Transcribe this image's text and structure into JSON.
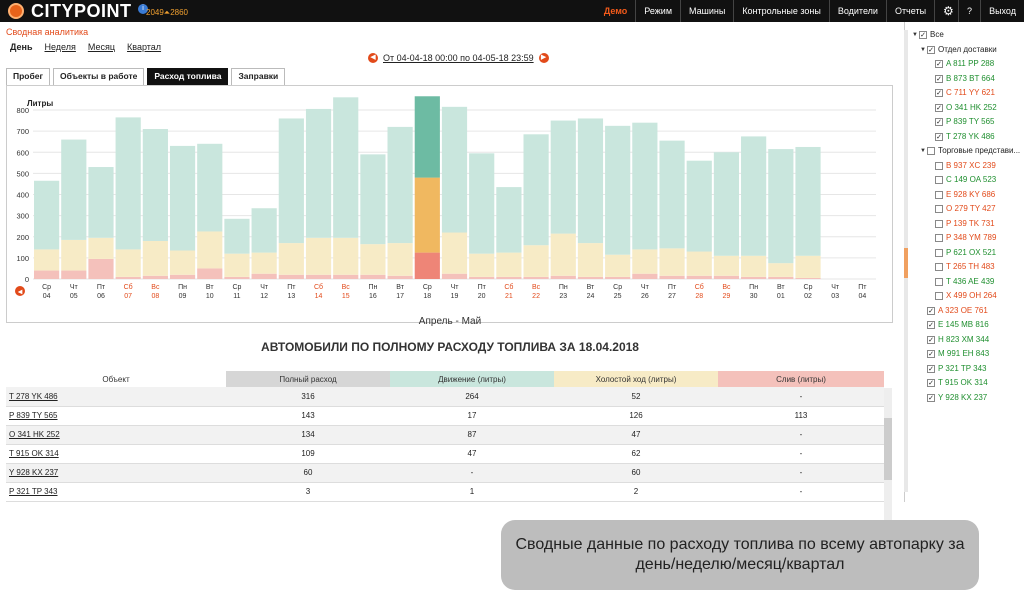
{
  "app": {
    "brand": "CITYPOINT",
    "info_badge": "i",
    "counter": "2049⏶2860"
  },
  "nav": [
    "Демо",
    "Режим",
    "Машины",
    "Контрольные зоны",
    "Водители",
    "Отчеты",
    "⚙",
    "?",
    "Выход"
  ],
  "page": {
    "title": "Сводная аналитика"
  },
  "periods": [
    "День",
    "Неделя",
    "Месяц",
    "Квартал"
  ],
  "date_range": "От 04-04-18 00:00 по 04-05-18 23:59",
  "tabs": [
    "Пробег",
    "Объекты в работе",
    "Расход топлива",
    "Заправки"
  ],
  "chart_data": {
    "type": "bar",
    "ylabel": "Литры",
    "ylim": [
      0,
      800
    ],
    "yticks": [
      0,
      100,
      200,
      300,
      400,
      500,
      600,
      700,
      800
    ],
    "xlabel": "Апрель - Май",
    "categories": [
      [
        "Ср",
        "04"
      ],
      [
        "Чт",
        "05"
      ],
      [
        "Пт",
        "06"
      ],
      [
        "Сб",
        "07"
      ],
      [
        "Вс",
        "08"
      ],
      [
        "Пн",
        "09"
      ],
      [
        "Вт",
        "10"
      ],
      [
        "Ср",
        "11"
      ],
      [
        "Чт",
        "12"
      ],
      [
        "Пт",
        "13"
      ],
      [
        "Сб",
        "14"
      ],
      [
        "Вс",
        "15"
      ],
      [
        "Пн",
        "16"
      ],
      [
        "Вт",
        "17"
      ],
      [
        "Ср",
        "18"
      ],
      [
        "Чт",
        "19"
      ],
      [
        "Пт",
        "20"
      ],
      [
        "Сб",
        "21"
      ],
      [
        "Вс",
        "22"
      ],
      [
        "Пн",
        "23"
      ],
      [
        "Вт",
        "24"
      ],
      [
        "Ср",
        "25"
      ],
      [
        "Чт",
        "26"
      ],
      [
        "Пт",
        "27"
      ],
      [
        "Сб",
        "28"
      ],
      [
        "Вс",
        "29"
      ],
      [
        "Пн",
        "30"
      ],
      [
        "Вт",
        "01"
      ],
      [
        "Ср",
        "02"
      ],
      [
        "Чт",
        "03"
      ],
      [
        "Пт",
        "04"
      ]
    ],
    "weekend_indices": [
      3,
      4,
      10,
      11,
      17,
      18,
      24,
      25
    ],
    "highlight_index": 14,
    "series": [
      {
        "values": [
          40,
          40,
          95,
          10,
          15,
          20,
          50,
          10,
          25,
          20,
          20,
          20,
          20,
          15,
          125,
          25,
          10,
          10,
          10,
          15,
          10,
          10,
          25,
          15,
          15,
          15,
          10,
          10,
          5,
          0,
          0
        ]
      },
      {
        "values": [
          100,
          145,
          100,
          130,
          165,
          115,
          175,
          110,
          100,
          150,
          175,
          175,
          145,
          155,
          355,
          195,
          110,
          115,
          150,
          200,
          160,
          105,
          115,
          130,
          115,
          95,
          100,
          65,
          105,
          0,
          0
        ]
      },
      {
        "values": [
          325,
          475,
          335,
          625,
          530,
          495,
          415,
          165,
          210,
          590,
          610,
          665,
          425,
          550,
          385,
          595,
          475,
          310,
          525,
          535,
          590,
          610,
          600,
          510,
          430,
          490,
          565,
          540,
          515,
          0,
          0
        ]
      }
    ],
    "colors": {
      "drain": "#f4c1bb",
      "idle": "#f7ebc6",
      "move": "#c9e6dd",
      "drain_hl": "#ee8577",
      "idle_hl": "#f0b860",
      "move_hl": "#6dbba3",
      "weekend_label": "#e24a1a"
    }
  },
  "table": {
    "title": "АВТОМОБИЛИ ПО ПОЛНОМУ РАСХОДУ ТОПЛИВА ЗА 18.04.2018",
    "columns": [
      "Объект",
      "Полный расход",
      "Движение (литры)",
      "Холостой ход (литры)",
      "Слив (литры)"
    ],
    "rows": [
      [
        "T 278 YK 486",
        "316",
        "264",
        "52",
        "-"
      ],
      [
        "P 839 TY 565",
        "143",
        "17",
        "126",
        "113"
      ],
      [
        "O 341 HK 252",
        "134",
        "87",
        "47",
        "-"
      ],
      [
        "T 915 OK 314",
        "109",
        "47",
        "62",
        "-"
      ],
      [
        "Y 928 KX 237",
        "60",
        "-",
        "60",
        "-"
      ],
      [
        "P 321 TP 343",
        "3",
        "1",
        "2",
        "-"
      ]
    ]
  },
  "caption": "Сводные данные по расходу топлива по всему автопарку за день/неделю/месяц/квартал",
  "sidebar": {
    "items": [
      {
        "label": "Все",
        "level": 0,
        "caret": true,
        "color": "black",
        "checked": true
      },
      {
        "label": "Отдел доставки",
        "level": 1,
        "caret": true,
        "color": "black",
        "checked": true
      },
      {
        "label": "A 811 PP 288",
        "level": 2,
        "caret": false,
        "color": "green",
        "checked": true
      },
      {
        "label": "B 873 BT 664",
        "level": 2,
        "caret": false,
        "color": "green",
        "checked": true
      },
      {
        "label": "C 711 YY 621",
        "level": 2,
        "caret": false,
        "color": "red",
        "checked": true
      },
      {
        "label": "O 341 HK 252",
        "level": 2,
        "caret": false,
        "color": "green",
        "checked": true
      },
      {
        "label": "P 839 TY 565",
        "level": 2,
        "caret": false,
        "color": "green",
        "checked": true
      },
      {
        "label": "T 278 YK 486",
        "level": 2,
        "caret": false,
        "color": "green",
        "checked": true
      },
      {
        "label": "Торговые представи...",
        "level": 1,
        "caret": true,
        "color": "black",
        "checked": false
      },
      {
        "label": "B 937 XC 239",
        "level": 2,
        "caret": false,
        "color": "red",
        "checked": false
      },
      {
        "label": "C 149 OA 523",
        "level": 2,
        "caret": false,
        "color": "green",
        "checked": false
      },
      {
        "label": "E 928 KY 686",
        "level": 2,
        "caret": false,
        "color": "red",
        "checked": false
      },
      {
        "label": "O 279 TY 427",
        "level": 2,
        "caret": false,
        "color": "red",
        "checked": false
      },
      {
        "label": "P 139 TK 731",
        "level": 2,
        "caret": false,
        "color": "red",
        "checked": false
      },
      {
        "label": "P 348 YM 789",
        "level": 2,
        "caret": false,
        "color": "red",
        "checked": false
      },
      {
        "label": "P 621 OX 521",
        "level": 2,
        "caret": false,
        "color": "green",
        "checked": false
      },
      {
        "label": "T 265 TH 483",
        "level": 2,
        "caret": false,
        "color": "red",
        "checked": false
      },
      {
        "label": "T 436 AE 439",
        "level": 2,
        "caret": false,
        "color": "green",
        "checked": false
      },
      {
        "label": "X 499 OH 264",
        "level": 2,
        "caret": false,
        "color": "red",
        "checked": false
      },
      {
        "label": "A 323 OE 761",
        "level": 1,
        "caret": false,
        "color": "red",
        "checked": true
      },
      {
        "label": "E 145 MB 816",
        "level": 1,
        "caret": false,
        "color": "green",
        "checked": true
      },
      {
        "label": "H 823 XM 344",
        "level": 1,
        "caret": false,
        "color": "green",
        "checked": true
      },
      {
        "label": "M 991 EH 843",
        "level": 1,
        "caret": false,
        "color": "green",
        "checked": true
      },
      {
        "label": "P 321 TP 343",
        "level": 1,
        "caret": false,
        "color": "green",
        "checked": true
      },
      {
        "label": "T 915 OK 314",
        "level": 1,
        "caret": false,
        "color": "green",
        "checked": true
      },
      {
        "label": "Y 928 KX 237",
        "level": 1,
        "caret": false,
        "color": "green",
        "checked": true
      }
    ]
  }
}
